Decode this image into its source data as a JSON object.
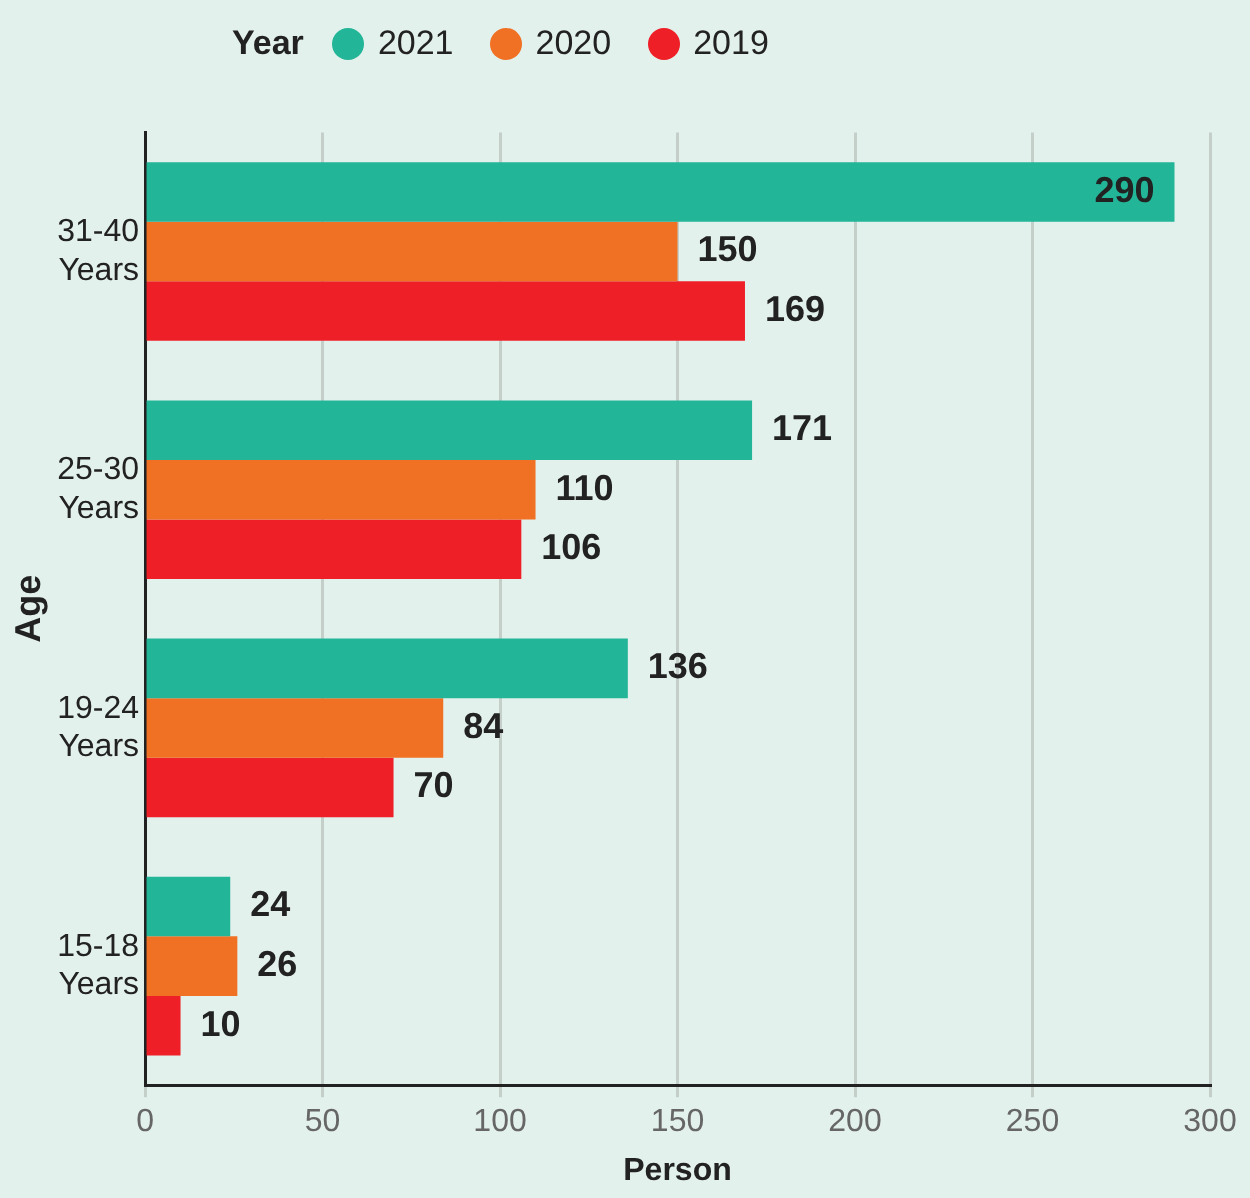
{
  "chart_data": {
    "type": "bar",
    "orientation": "horizontal",
    "xlabel": "Person",
    "ylabel": "Age",
    "legend_title": "Year",
    "categories": [
      "31-40 Years",
      "25-30 Years",
      "19-24 Years",
      "15-18 Years"
    ],
    "series": [
      {
        "name": "2021",
        "color": "#22b598",
        "values": [
          290,
          171,
          136,
          24
        ]
      },
      {
        "name": "2020",
        "color": "#f07024",
        "values": [
          150,
          110,
          84,
          26
        ]
      },
      {
        "name": "2019",
        "color": "#ee1f27",
        "values": [
          169,
          106,
          70,
          10
        ]
      }
    ],
    "xlim": [
      0,
      300
    ],
    "xticks": [
      0,
      50,
      100,
      150,
      200,
      250,
      300
    ],
    "grid": "x",
    "legend": "top left",
    "data_labels": true
  }
}
